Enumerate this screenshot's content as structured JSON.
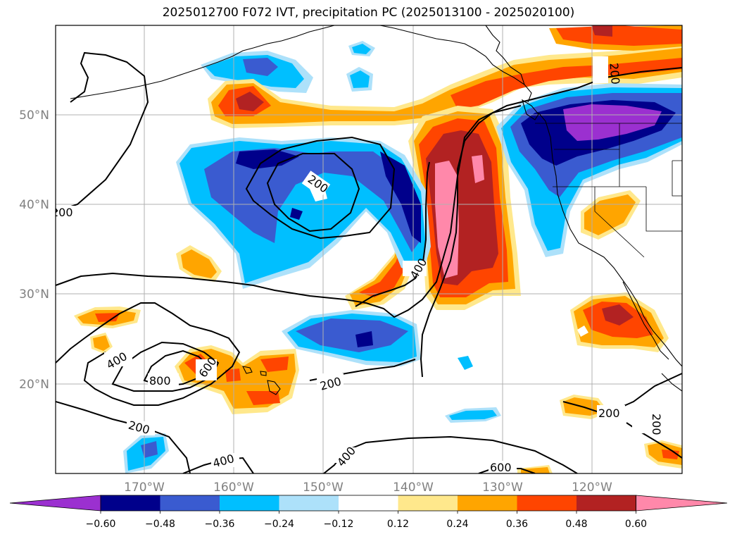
{
  "title": "2025012700 F072 IVT, precipitation PC (2025013100 - 2025020100)",
  "axes": {
    "lon_ticks": [
      "170°W",
      "160°W",
      "150°W",
      "140°W",
      "130°W",
      "120°W"
    ],
    "lat_ticks": [
      "50°N",
      "40°N",
      "30°N",
      "20°N"
    ]
  },
  "colorbar": {
    "tick_labels": [
      "−0.60",
      "−0.48",
      "−0.36",
      "−0.24",
      "−0.12",
      "0.12",
      "0.24",
      "0.36",
      "0.48",
      "0.60"
    ],
    "colors": {
      "under": "#9b30d0",
      "bins": [
        "#00008b",
        "#3a5bd0",
        "#00bfff",
        "#ade1fa",
        "#ffffff",
        "#ffe88c",
        "#ffa500",
        "#ff4500",
        "#b22222"
      ],
      "over": "#ff88aa"
    }
  },
  "ivt_contour_labels": [
    "200",
    "200",
    "200",
    "200",
    "200",
    "200",
    "200",
    "200",
    "400",
    "400",
    "400",
    "400",
    "600",
    "600",
    "800"
  ],
  "colors": {
    "grid": "#b0b0b0",
    "tick_label": "#808080",
    "contour": "#000000"
  }
}
